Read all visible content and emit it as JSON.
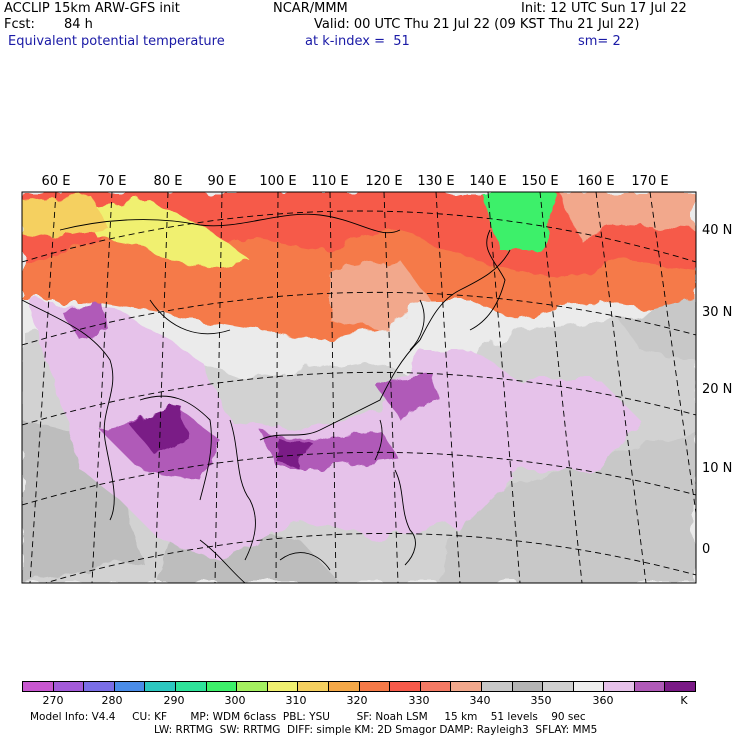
{
  "header": {
    "model": "ACCLIP 15km ARW-GFS init",
    "center": "NCAR/MMM",
    "init": "Init: 12 UTC Sun 17 Jul 22",
    "fcst_label": "Fcst:",
    "fcst_value": "84 h",
    "valid": "Valid: 00 UTC Thu 21 Jul 22 (09 KST Thu 21 Jul 22)",
    "field": "Equivalent potential temperature",
    "level": "at k-index =  51",
    "smoothing": "sm= 2"
  },
  "map": {
    "longitude_labels": [
      "60 E",
      "70 E",
      "80 E",
      "90 E",
      "100 E",
      "110 E",
      "120 E",
      "130 E",
      "140 E",
      "150 E",
      "160 E",
      "170 E"
    ],
    "latitude_labels": [
      "40 N",
      "30 N",
      "20 N",
      "10 N",
      "0"
    ]
  },
  "colorbar": {
    "unit": "K",
    "tick_labels": [
      "270",
      "280",
      "290",
      "300",
      "310",
      "320",
      "330",
      "340",
      "350",
      "360"
    ],
    "colors": [
      "#c857d0",
      "#a35bd9",
      "#7a6ee6",
      "#4a8ce8",
      "#2cc7c0",
      "#2ee39a",
      "#3df06a",
      "#a4f060",
      "#f0f070",
      "#f5d060",
      "#f4a848",
      "#f57a48",
      "#f65a4a",
      "#f47a64",
      "#f2a88c",
      "#c8c8c8",
      "#b4b4b4",
      "#d0d0d0",
      "#eeeeee",
      "#e6c2ea",
      "#b05ab8",
      "#7a1a86"
    ]
  },
  "footer": {
    "line1": "Model Info: V4.4     CU: KF       MP: WDM 6class  PBL: YSU        SF: Noah LSM     15 km    51 levels    90 sec",
    "line2": "LW: RRTMG  SW: RRTMG  DIFF: simple KM: 2D Smagor DAMP: Rayleigh3  SFLAY: MM5"
  }
}
